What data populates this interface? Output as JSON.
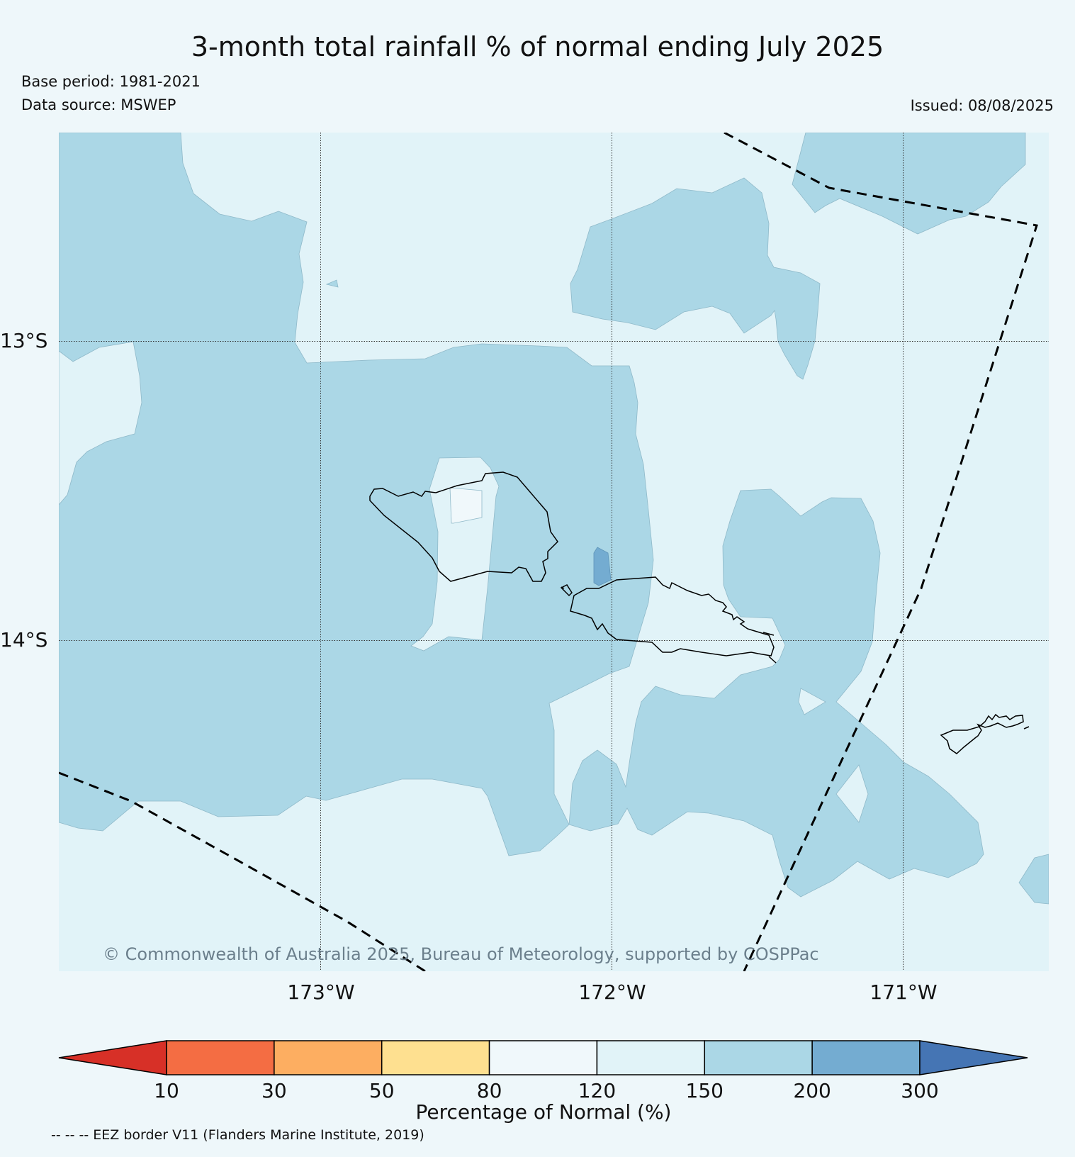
{
  "title": "3-month total rainfall % of normal ending July 2025",
  "base_period": "Base period: 1981-2021",
  "data_source": "Data source: MSWEP",
  "issued": "Issued: 08/08/2025",
  "copyright": "© Commonwealth of Australia 2025, Bureau of Meteorology, supported by COSPPac",
  "eez_note": "-- -- -- EEZ border V11 (Flanders Marine Institute, 2019)",
  "map": {
    "longitude_labels": [
      "173°W",
      "172°W",
      "171°W"
    ],
    "latitude_labels": [
      "13°S",
      "14°S"
    ],
    "colors": {
      "background": "#e1f3f8",
      "range_150_200": "#abd7e6",
      "range_200_300": "#74acd1",
      "range_120_150": "#e1f3f8",
      "range_80_120": "#f0f8fb"
    }
  },
  "colorbar": {
    "title": "Percentage of Normal (%)",
    "tick_labels": [
      "10",
      "30",
      "50",
      "80",
      "120",
      "150",
      "200",
      "300"
    ],
    "colors": [
      "#d73027",
      "#f46d43",
      "#fdae61",
      "#fee090",
      "#f0f8fb",
      "#e1f3f8",
      "#abd7e6",
      "#74acd1",
      "#4575b4"
    ]
  }
}
